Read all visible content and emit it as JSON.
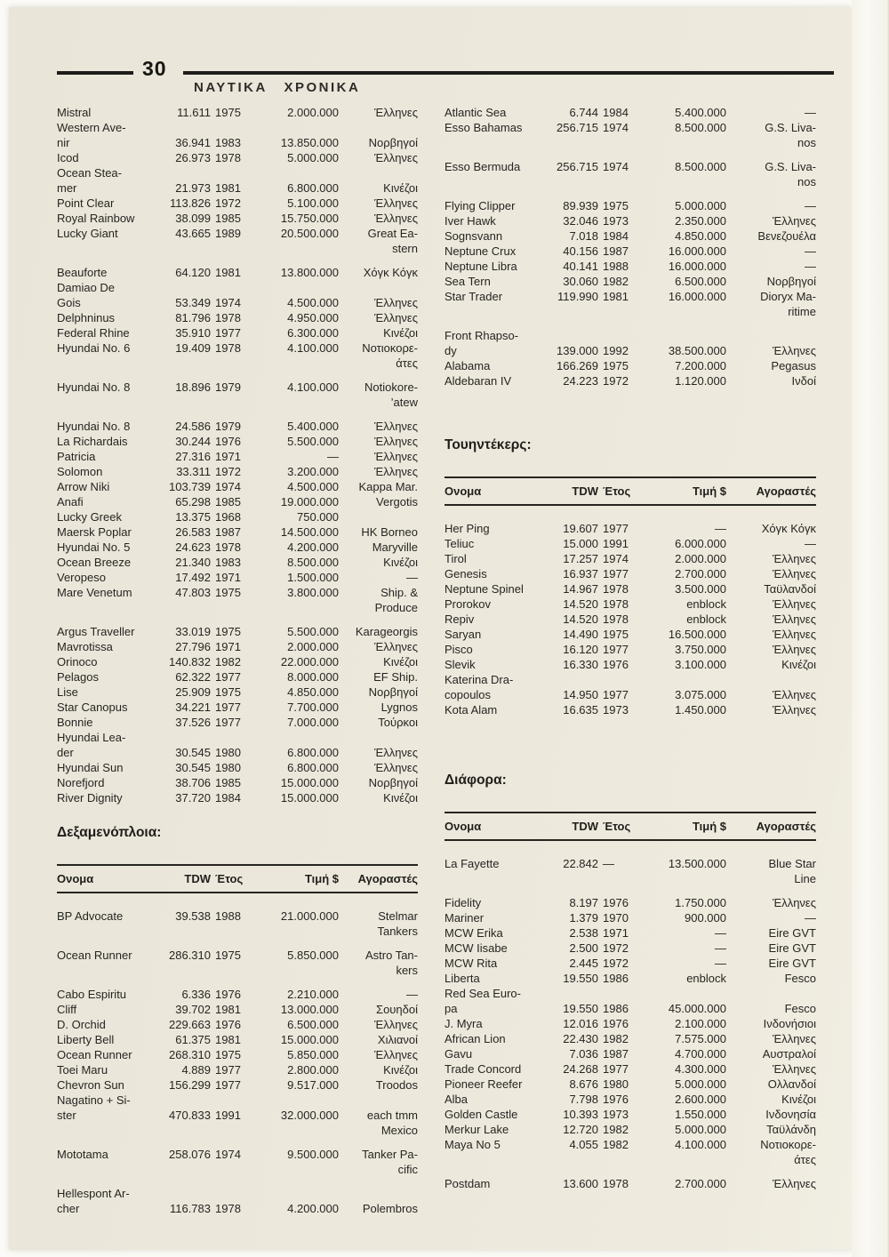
{
  "page": {
    "number": "30",
    "magazine_title": "ΝΑΥΤΙΚΑ ΧΡΟΝΙΚΑ"
  },
  "table_headers": {
    "name": "Ονομα",
    "tdw": "TDW",
    "year": "Έτος",
    "price": "Τιμή $",
    "buyers": "Αγοραστές"
  },
  "sections": {
    "left_list": {
      "rows": [
        {
          "name": "Mistral",
          "tdw": "11.611",
          "year": "1975",
          "price": "2.000.000",
          "buyer": "Έλληνες"
        },
        {
          "pre": "Western Ave-",
          "name": "nir",
          "tdw": "36.941",
          "year": "1983",
          "price": "13.850.000",
          "buyer": "Νορβηγοί"
        },
        {
          "name": "Icod",
          "tdw": "26.973",
          "year": "1978",
          "price": "5.000.000",
          "buyer": "Έλληνες"
        },
        {
          "pre": "Ocean Stea-",
          "name": "mer",
          "tdw": "21.973",
          "year": "1981",
          "price": "6.800.000",
          "buyer": "Κινέζοι"
        },
        {
          "name": "Point Clear",
          "tdw": "113.826",
          "year": "1972",
          "price": "5.100.000",
          "buyer": "Έλληνες"
        },
        {
          "name": "Royal Rainbow",
          "tdw": "38.099",
          "year": "1985",
          "price": "15.750.000",
          "buyer": "Έλληνες"
        },
        {
          "name": "Lucky Giant",
          "tdw": "43.665",
          "year": "1989",
          "price": "20.500.000",
          "buyer": "Great Ea-",
          "post": "stern"
        },
        {
          "name": "Beauforte",
          "tdw": "64.120",
          "year": "1981",
          "price": "13.800.000",
          "buyer": "Χόγκ Κόγκ",
          "gap": true
        },
        {
          "pre": "Damiao De",
          "name": "Gois",
          "tdw": "53.349",
          "year": "1974",
          "price": "4.500.000",
          "buyer": "Έλληνες"
        },
        {
          "name": "Delphninus",
          "tdw": "81.796",
          "year": "1978",
          "price": "4.950.000",
          "buyer": "Έλληνες"
        },
        {
          "name": "Federal Rhine",
          "tdw": "35.910",
          "year": "1977",
          "price": "6.300.000",
          "buyer": "Κινέζοι"
        },
        {
          "name": "Hyundai No. 6",
          "tdw": "19.409",
          "year": "1978",
          "price": "4.100.000",
          "buyer": "Νοτιοκορε-",
          "post": "άτες"
        },
        {
          "name": "Hyundai No. 8",
          "tdw": "18.896",
          "year": "1979",
          "price": "4.100.000",
          "buyer": "Notiokore-",
          "post": "’atew",
          "gap": true
        },
        {
          "name": "Hyundai No. 8",
          "tdw": "24.586",
          "year": "1979",
          "price": "5.400.000",
          "buyer": "Έλληνες",
          "gap": true
        },
        {
          "name": "La Richardais",
          "tdw": "30.244",
          "year": "1976",
          "price": "5.500.000",
          "buyer": "Έλληνες"
        },
        {
          "name": "Patricia",
          "tdw": "27.316",
          "year": "1971",
          "price": "—",
          "buyer": "Έλληνες"
        },
        {
          "name": "Solomon",
          "tdw": "33.311",
          "year": "1972",
          "price": "3.200.000",
          "buyer": "Έλληνες"
        },
        {
          "name": "Arrow Niki",
          "tdw": "103.739",
          "year": "1974",
          "price": "4.500.000",
          "buyer": "Kappa Mar."
        },
        {
          "name": "Anafi",
          "tdw": "65.298",
          "year": "1985",
          "price": "19.000.000",
          "buyer": "Vergotis"
        },
        {
          "name": "Lucky Greek",
          "tdw": "13.375",
          "year": "1968",
          "price": "750.000",
          "buyer": ""
        },
        {
          "name": "Maersk Poplar",
          "tdw": "26.583",
          "year": "1987",
          "price": "14.500.000",
          "buyer": "HK Borneo"
        },
        {
          "name": "Hyundai No. 5",
          "tdw": "24.623",
          "year": "1978",
          "price": "4.200.000",
          "buyer": "Maryville"
        },
        {
          "name": "Ocean Breeze",
          "tdw": "21.340",
          "year": "1983",
          "price": "8.500.000",
          "buyer": "Κινέζοι"
        },
        {
          "name": "Veropeso",
          "tdw": "17.492",
          "year": "1971",
          "price": "1.500.000",
          "buyer": "—"
        },
        {
          "name": "Mare Venetum",
          "tdw": "47.803",
          "year": "1975",
          "price": "3.800.000",
          "buyer": "Ship. &",
          "post": "Produce"
        },
        {
          "name": "Argus Traveller",
          "tdw": "33.019",
          "year": "1975",
          "price": "5.500.000",
          "buyer": "Karageorgis",
          "gap": true
        },
        {
          "name": "Mavrotissa",
          "tdw": "27.796",
          "year": "1971",
          "price": "2.000.000",
          "buyer": "Έλληνες"
        },
        {
          "name": "Orinoco",
          "tdw": "140.832",
          "year": "1982",
          "price": "22.000.000",
          "buyer": "Κινέζοι"
        },
        {
          "name": "Pelagos",
          "tdw": "62.322",
          "year": "1977",
          "price": "8.000.000",
          "buyer": "EF Ship."
        },
        {
          "name": "Lise",
          "tdw": "25.909",
          "year": "1975",
          "price": "4.850.000",
          "buyer": "Νορβηγοί"
        },
        {
          "name": "Star Canopus",
          "tdw": "34.221",
          "year": "1977",
          "price": "7.700.000",
          "buyer": "Lygnos"
        },
        {
          "name": "Bonnie",
          "tdw": "37.526",
          "year": "1977",
          "price": "7.000.000",
          "buyer": "Τούρκοι"
        },
        {
          "pre": "Hyundai Lea-",
          "name": "der",
          "tdw": "30.545",
          "year": "1980",
          "price": "6.800.000",
          "buyer": "Έλληνες"
        },
        {
          "name": "Hyundai Sun",
          "tdw": "30.545",
          "year": "1980",
          "price": "6.800.000",
          "buyer": "Έλληνες"
        },
        {
          "name": "Norefjord",
          "tdw": "38.706",
          "year": "1985",
          "price": "15.000.000",
          "buyer": "Νορβηγοί"
        },
        {
          "name": "River Dignity",
          "tdw": "37.720",
          "year": "1984",
          "price": "15.000.000",
          "buyer": "Κινέζοι"
        }
      ]
    },
    "tankers": {
      "title": "Δεξαμενόπλοια:",
      "rows": [
        {
          "name": "BP Advocate",
          "tdw": "39.538",
          "year": "1988",
          "price": "21.000.000",
          "buyer": "Stelmar",
          "post": "Tankers"
        },
        {
          "name": "Ocean Runner",
          "tdw": "286.310",
          "year": "1975",
          "price": "5.850.000",
          "buyer": "Astro Tan-",
          "post": "kers",
          "gap": true
        },
        {
          "name": "Cabo Espiritu",
          "tdw": "6.336",
          "year": "1976",
          "price": "2.210.000",
          "buyer": "—",
          "gap": true
        },
        {
          "name": "Cliff",
          "tdw": "39.702",
          "year": "1981",
          "price": "13.000.000",
          "buyer": "Σουηδοί"
        },
        {
          "name": "D. Orchid",
          "tdw": "229.663",
          "year": "1976",
          "price": "6.500.000",
          "buyer": "Έλληνες"
        },
        {
          "name": "Liberty Bell",
          "tdw": "61.375",
          "year": "1981",
          "price": "15.000.000",
          "buyer": "Χιλιανοί"
        },
        {
          "name": "Ocean Runner",
          "tdw": "268.310",
          "year": "1975",
          "price": "5.850.000",
          "buyer": "Έλληνες"
        },
        {
          "name": "Toei Maru",
          "tdw": "4.889",
          "year": "1977",
          "price": "2.800.000",
          "buyer": "Κινέζοι"
        },
        {
          "name": "Chevron Sun",
          "tdw": "156.299",
          "year": "1977",
          "price": "9.517.000",
          "buyer": "Troodos"
        },
        {
          "pre": "Nagatino + Si-",
          "name": "ster",
          "tdw": "470.833",
          "year": "1991",
          "price": "32.000.000",
          "buyer": "each tmm",
          "post": "Mexico"
        },
        {
          "name": "Mototama",
          "tdw": "258.076",
          "year": "1974",
          "price": "9.500.000",
          "buyer": "Tanker Pa-",
          "post": "cific",
          "gap": true
        },
        {
          "pre": "Hellespont Ar-",
          "name": "cher",
          "tdw": "116.783",
          "year": "1978",
          "price": "4.200.000",
          "buyer": "Polembros",
          "gap": true
        }
      ]
    },
    "right_list": {
      "rows": [
        {
          "name": "Atlantic Sea",
          "tdw": "6.744",
          "year": "1984",
          "price": "5.400.000",
          "buyer": "—"
        },
        {
          "name": "Esso Bahamas",
          "tdw": "256.715",
          "year": "1974",
          "price": "8.500.000",
          "buyer": "G.S. Liva-",
          "post": "nos"
        },
        {
          "name": "Esso Bermuda",
          "tdw": "256.715",
          "year": "1974",
          "price": "8.500.000",
          "buyer": "G.S. Liva-",
          "post": "nos",
          "gap": true
        },
        {
          "name": "Flying Clipper",
          "tdw": "89.939",
          "year": "1975",
          "price": "5.000.000",
          "buyer": "—",
          "gap": true
        },
        {
          "name": "Iver Hawk",
          "tdw": "32.046",
          "year": "1973",
          "price": "2.350.000",
          "buyer": "Έλληνες"
        },
        {
          "name": "Sognsvann",
          "tdw": "7.018",
          "year": "1984",
          "price": "4.850.000",
          "buyer": "Βενεζουέλα"
        },
        {
          "name": "Neptune Crux",
          "tdw": "40.156",
          "year": "1987",
          "price": "16.000.000",
          "buyer": "—"
        },
        {
          "name": "Neptune Libra",
          "tdw": "40.141",
          "year": "1988",
          "price": "16.000.000",
          "buyer": "—"
        },
        {
          "name": "Sea Tern",
          "tdw": "30.060",
          "year": "1982",
          "price": "6.500.000",
          "buyer": "Νορβηγοί"
        },
        {
          "name": "Star Trader",
          "tdw": "119.990",
          "year": "1981",
          "price": "16.000.000",
          "buyer": "Dioryx Ma-",
          "post": "ritime"
        },
        {
          "pre": "Front Rhapso-",
          "name": "dy",
          "tdw": "139.000",
          "year": "1992",
          "price": "38.500.000",
          "buyer": "Έλληνες",
          "gap": true
        },
        {
          "name": "Alabama",
          "tdw": "166.269",
          "year": "1975",
          "price": "7.200.000",
          "buyer": "Pegasus"
        },
        {
          "name": "Aldebaran IV",
          "tdw": "24.223",
          "year": "1972",
          "price": "1.120.000",
          "buyer": "Ινδοί"
        }
      ]
    },
    "tweendeckers": {
      "title": "Τουηντέκερς:",
      "rows": [
        {
          "name": "Her Ping",
          "tdw": "19.607",
          "year": "1977",
          "price": "—",
          "buyer": "Χόγκ Κόγκ"
        },
        {
          "name": "Teliuc",
          "tdw": "15.000",
          "year": "1991",
          "price": "6.000.000",
          "buyer": "—"
        },
        {
          "name": "Tirol",
          "tdw": "17.257",
          "year": "1974",
          "price": "2.000.000",
          "buyer": "Έλληνες"
        },
        {
          "name": "Genesis",
          "tdw": "16.937",
          "year": "1977",
          "price": "2.700.000",
          "buyer": "Έλληνες"
        },
        {
          "name": "Neptune Spinel",
          "tdw": "14.967",
          "year": "1978",
          "price": "3.500.000",
          "buyer": "Ταϋλανδοί"
        },
        {
          "name": "Prorokov",
          "tdw": "14.520",
          "year": "1978",
          "price": "enblock",
          "buyer": "Έλληνες"
        },
        {
          "name": "Repiv",
          "tdw": "14.520",
          "year": "1978",
          "price": "enblock",
          "buyer": "Έλληνες"
        },
        {
          "name": "Saryan",
          "tdw": "14.490",
          "year": "1975",
          "price": "16.500.000",
          "buyer": "Έλληνες"
        },
        {
          "name": "Pisco",
          "tdw": "16.120",
          "year": "1977",
          "price": "3.750.000",
          "buyer": "Έλληνες"
        },
        {
          "name": "Slevik",
          "tdw": "16.330",
          "year": "1976",
          "price": "3.100.000",
          "buyer": "Κινέζοι"
        },
        {
          "pre": "Katerina Dra-",
          "name": "copoulos",
          "tdw": "14.950",
          "year": "1977",
          "price": "3.075.000",
          "buyer": "Έλληνες"
        },
        {
          "name": "Kota Alam",
          "tdw": "16.635",
          "year": "1973",
          "price": "1.450.000",
          "buyer": "Έλληνες"
        }
      ]
    },
    "misc": {
      "title": "Διάφορα:",
      "rows": [
        {
          "name": "La Fayette",
          "tdw": "22.842",
          "year": "—",
          "price": "13.500.000",
          "buyer": "Blue Star",
          "post": "Line"
        },
        {
          "name": "Fidelity",
          "tdw": "8.197",
          "year": "1976",
          "price": "1.750.000",
          "buyer": "Έλληνες",
          "gap": true
        },
        {
          "name": "Mariner",
          "tdw": "1.379",
          "year": "1970",
          "price": "900.000",
          "buyer": "—"
        },
        {
          "name": "MCW Erika",
          "tdw": "2.538",
          "year": "1971",
          "price": "—",
          "buyer": "Eire GVT"
        },
        {
          "name": "MCW Iisabe",
          "tdw": "2.500",
          "year": "1972",
          "price": "—",
          "buyer": "Eire GVT"
        },
        {
          "name": "MCW Rita",
          "tdw": "2.445",
          "year": "1972",
          "price": "—",
          "buyer": "Eire GVT"
        },
        {
          "name": "Liberta",
          "tdw": "19.550",
          "year": "1986",
          "price": "enblock",
          "buyer": "Fesco"
        },
        {
          "pre": "Red Sea Euro-",
          "name": "pa",
          "tdw": "19.550",
          "year": "1986",
          "price": "45.000.000",
          "buyer": "Fesco"
        },
        {
          "name": "J. Myra",
          "tdw": "12.016",
          "year": "1976",
          "price": "2.100.000",
          "buyer": "Ινδονήσιοι"
        },
        {
          "name": "African Lion",
          "tdw": "22.430",
          "year": "1982",
          "price": "7.575.000",
          "buyer": "Έλληνες"
        },
        {
          "name": "Gavu",
          "tdw": "7.036",
          "year": "1987",
          "price": "4.700.000",
          "buyer": "Αυστραλοί"
        },
        {
          "name": "Trade Concord",
          "tdw": "24.268",
          "year": "1977",
          "price": "4.300.000",
          "buyer": "Έλληνες"
        },
        {
          "name": "Pioneer Reefer",
          "tdw": "8.676",
          "year": "1980",
          "price": "5.000.000",
          "buyer": "Ολλανδοί"
        },
        {
          "name": "Alba",
          "tdw": "7.798",
          "year": "1976",
          "price": "2.600.000",
          "buyer": "Κινέζοι"
        },
        {
          "name": "Golden Castle",
          "tdw": "10.393",
          "year": "1973",
          "price": "1.550.000",
          "buyer": "Ινδονησία"
        },
        {
          "name": "Merkur Lake",
          "tdw": "12.720",
          "year": "1982",
          "price": "5.000.000",
          "buyer": "Ταϋλάνδη"
        },
        {
          "name": "Maya No 5",
          "tdw": "4.055",
          "year": "1982",
          "price": "4.100.000",
          "buyer": "Νοτιοκορε-",
          "post": "άτες"
        },
        {
          "name": "Postdam",
          "tdw": "13.600",
          "year": "1978",
          "price": "2.700.000",
          "buyer": "Έλληνες",
          "gap": true
        }
      ]
    }
  }
}
